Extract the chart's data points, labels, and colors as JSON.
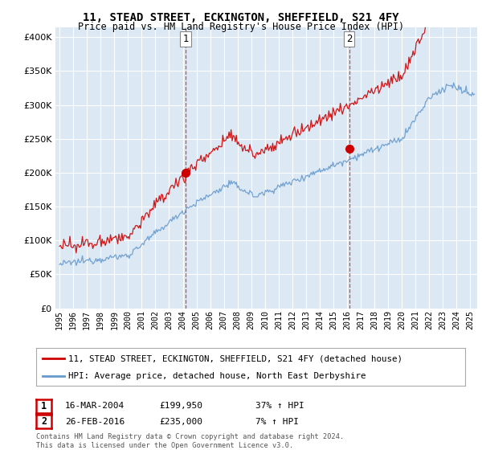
{
  "title_line1": "11, STEAD STREET, ECKINGTON, SHEFFIELD, S21 4FY",
  "title_line2": "Price paid vs. HM Land Registry's House Price Index (HPI)",
  "fig_bg_color": "#ffffff",
  "plot_bg_color": "#dce9f5",
  "red_color": "#cc0000",
  "blue_color": "#6699cc",
  "sale1_x": 2004.21,
  "sale1_y": 199950,
  "sale2_x": 2016.15,
  "sale2_y": 235000,
  "legend_line1": "11, STEAD STREET, ECKINGTON, SHEFFIELD, S21 4FY (detached house)",
  "legend_line2": "HPI: Average price, detached house, North East Derbyshire",
  "ann1_date": "16-MAR-2004",
  "ann1_price": "£199,950",
  "ann1_hpi": "37% ↑ HPI",
  "ann2_date": "26-FEB-2016",
  "ann2_price": "£235,000",
  "ann2_hpi": "7% ↑ HPI",
  "footer": "Contains HM Land Registry data © Crown copyright and database right 2024.\nThis data is licensed under the Open Government Licence v3.0.",
  "yticks": [
    0,
    50000,
    100000,
    150000,
    200000,
    250000,
    300000,
    350000,
    400000
  ],
  "ylim": [
    0,
    415000
  ],
  "xlim": [
    1994.7,
    2025.5
  ]
}
